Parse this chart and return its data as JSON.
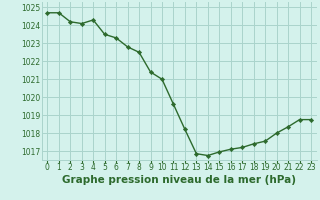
{
  "x": [
    0,
    1,
    2,
    3,
    4,
    5,
    6,
    7,
    8,
    9,
    10,
    11,
    12,
    13,
    14,
    15,
    16,
    17,
    18,
    19,
    20,
    21,
    22,
    23
  ],
  "y": [
    1024.7,
    1024.7,
    1024.2,
    1024.1,
    1024.3,
    1023.5,
    1023.3,
    1022.8,
    1022.5,
    1021.4,
    1021.0,
    1019.6,
    1018.2,
    1016.85,
    1016.75,
    1016.95,
    1017.1,
    1017.2,
    1017.4,
    1017.55,
    1018.0,
    1018.35,
    1018.75,
    1018.75
  ],
  "line_color": "#2d6a2d",
  "marker": "D",
  "marker_size": 2.2,
  "line_width": 1.0,
  "bg_color": "#d4f2ec",
  "grid_color": "#aad4cc",
  "xlabel": "Graphe pression niveau de la mer (hPa)",
  "xlabel_fontsize": 7.5,
  "xlabel_color": "#2d6a2d",
  "tick_color": "#2d6a2d",
  "tick_fontsize": 5.5,
  "ylim": [
    1016.5,
    1025.3
  ],
  "yticks": [
    1017,
    1018,
    1019,
    1020,
    1021,
    1022,
    1023,
    1024,
    1025
  ],
  "xticks": [
    0,
    1,
    2,
    3,
    4,
    5,
    6,
    7,
    8,
    9,
    10,
    11,
    12,
    13,
    14,
    15,
    16,
    17,
    18,
    19,
    20,
    21,
    22,
    23
  ],
  "xtick_labels": [
    "0",
    "1",
    "2",
    "3",
    "4",
    "5",
    "6",
    "7",
    "8",
    "9",
    "10",
    "11",
    "12",
    "13",
    "14",
    "15",
    "16",
    "17",
    "18",
    "19",
    "20",
    "21",
    "22",
    "23"
  ]
}
